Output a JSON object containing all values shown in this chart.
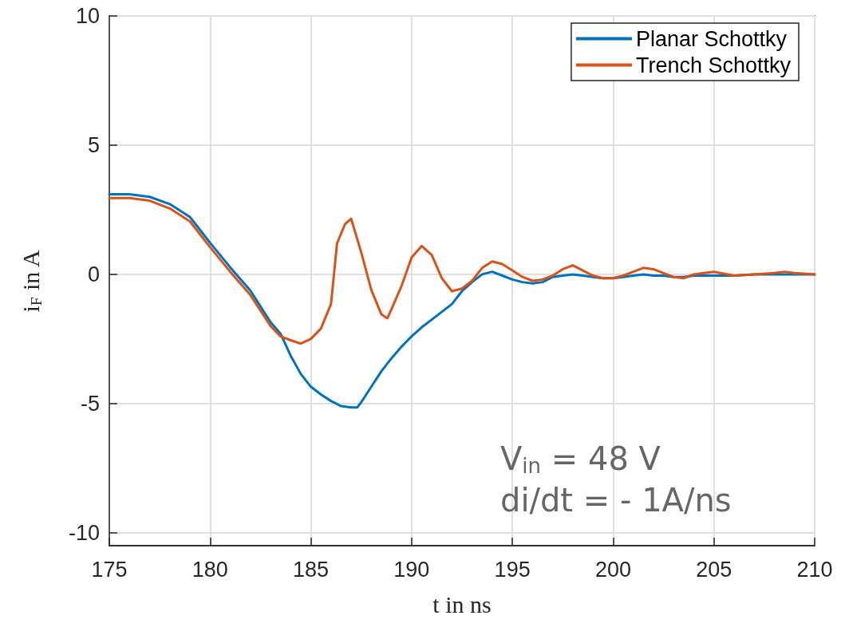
{
  "chart_data": {
    "type": "line",
    "xlabel": "t in ns",
    "ylabel": "i$_{F}$ in A",
    "annotations": [
      "V$_{in}$ = 48 V",
      "di/dt = - 1A/ns"
    ],
    "xlim": [
      175,
      210
    ],
    "xticks": [
      175,
      180,
      185,
      190,
      195,
      200,
      205,
      210
    ],
    "ylim": [
      -10.5,
      10
    ],
    "yticks": [
      -10,
      -5,
      0,
      5,
      10
    ],
    "grid": true,
    "legend": "top right",
    "marker": "none",
    "line_style": "solid",
    "series": [
      {
        "name": "Planar Schottky",
        "color": "#0072bd",
        "x": [
          175,
          175.5,
          176,
          177,
          178,
          179,
          180,
          181,
          182,
          183,
          183.5,
          184,
          184.5,
          185,
          185.5,
          186,
          186.5,
          187,
          187.3,
          187.5,
          188,
          188.5,
          189,
          189.5,
          190,
          190.5,
          191,
          191.5,
          192,
          192.5,
          193,
          193.5,
          194,
          194.5,
          195,
          195.5,
          196,
          196.5,
          197,
          197.5,
          198,
          198.5,
          199,
          199.5,
          200,
          200.5,
          201,
          201.5,
          202,
          202.5,
          203,
          203.5,
          204,
          205,
          206,
          207,
          208,
          209,
          210
        ],
        "values": [
          3.1,
          3.1,
          3.1,
          3.0,
          2.72,
          2.22,
          1.22,
          0.27,
          -0.63,
          -1.85,
          -2.3,
          -3.15,
          -3.85,
          -4.35,
          -4.65,
          -4.9,
          -5.1,
          -5.15,
          -5.15,
          -4.95,
          -4.35,
          -3.75,
          -3.25,
          -2.8,
          -2.4,
          -2.05,
          -1.75,
          -1.45,
          -1.15,
          -0.65,
          -0.3,
          0,
          0.1,
          -0.05,
          -0.2,
          -0.3,
          -0.35,
          -0.3,
          -0.1,
          -0.05,
          0,
          -0.05,
          -0.1,
          -0.15,
          -0.15,
          -0.1,
          -0.05,
          0,
          -0.05,
          -0.05,
          -0.1,
          -0.1,
          -0.05,
          -0.05,
          -0.05,
          0,
          0,
          0,
          0
        ]
      },
      {
        "name": "Trench Schottky",
        "color": "#d95319",
        "x": [
          175,
          175.5,
          176,
          177,
          178,
          179,
          180,
          181,
          182,
          183,
          183.5,
          184,
          184.5,
          185,
          185.5,
          186,
          186.3,
          186.7,
          187,
          187.5,
          188,
          188.5,
          188.8,
          189,
          189.5,
          190,
          190.5,
          191,
          191.5,
          192,
          192.5,
          193,
          193.5,
          194,
          194.5,
          195,
          195.5,
          196,
          196.5,
          197,
          197.5,
          198,
          198.5,
          199,
          199.5,
          200,
          200.5,
          201,
          201.5,
          202,
          202.5,
          203,
          203.5,
          204,
          204.5,
          205,
          206,
          207,
          208,
          208.5,
          209,
          210
        ],
        "values": [
          2.95,
          2.95,
          2.95,
          2.85,
          2.55,
          2.05,
          1.05,
          0.1,
          -0.8,
          -2.0,
          -2.4,
          -2.55,
          -2.68,
          -2.5,
          -2.1,
          -1.15,
          1.2,
          1.95,
          2.15,
          0.85,
          -0.6,
          -1.55,
          -1.7,
          -1.35,
          -0.45,
          0.65,
          1.1,
          0.75,
          -0.15,
          -0.65,
          -0.55,
          -0.25,
          0.25,
          0.5,
          0.4,
          0.15,
          -0.1,
          -0.25,
          -0.2,
          -0.05,
          0.2,
          0.35,
          0.15,
          -0.05,
          -0.15,
          -0.15,
          -0.05,
          0.1,
          0.25,
          0.2,
          0.05,
          -0.1,
          -0.15,
          0,
          0.05,
          0.1,
          -0.05,
          0,
          0.05,
          0.1,
          0.05,
          0
        ]
      }
    ]
  }
}
